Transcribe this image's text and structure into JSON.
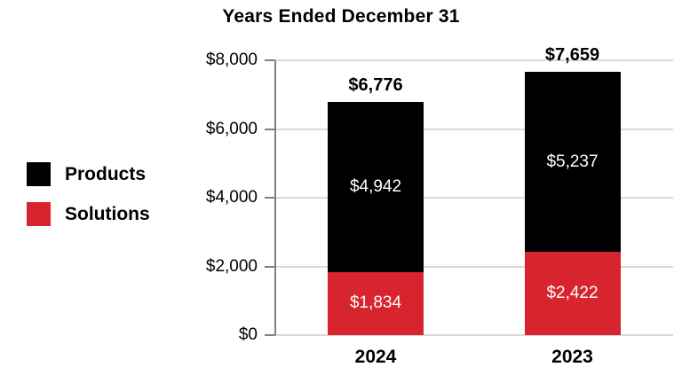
{
  "chart_data": {
    "type": "bar",
    "stacked": true,
    "title": "Years Ended December 31",
    "categories": [
      "2024",
      "2023"
    ],
    "series": [
      {
        "name": "Products",
        "color": "#000000",
        "values": [
          4942,
          5237
        ],
        "value_labels": [
          "$4,942",
          "$5,237"
        ]
      },
      {
        "name": "Solutions",
        "color": "#D8242F",
        "values": [
          1834,
          2422
        ],
        "value_labels": [
          "$1,834",
          "$2,422"
        ]
      }
    ],
    "totals": [
      6776,
      7659
    ],
    "total_labels": [
      "$6,776",
      "$7,659"
    ],
    "y_ticks": [
      {
        "value": 8000,
        "label": "$8,000"
      },
      {
        "value": 6000,
        "label": "$6,000"
      },
      {
        "value": 4000,
        "label": "$4,000"
      },
      {
        "value": 2000,
        "label": "$2,000"
      },
      {
        "value": 0,
        "label": "$0"
      }
    ],
    "ylim": [
      0,
      8000
    ],
    "grid": true,
    "legend_position": "left",
    "colors": {
      "gridline": "#D9D9D9",
      "axis": "#808080",
      "segment_label_text": "#FFFFFF",
      "text": "#000000"
    }
  }
}
